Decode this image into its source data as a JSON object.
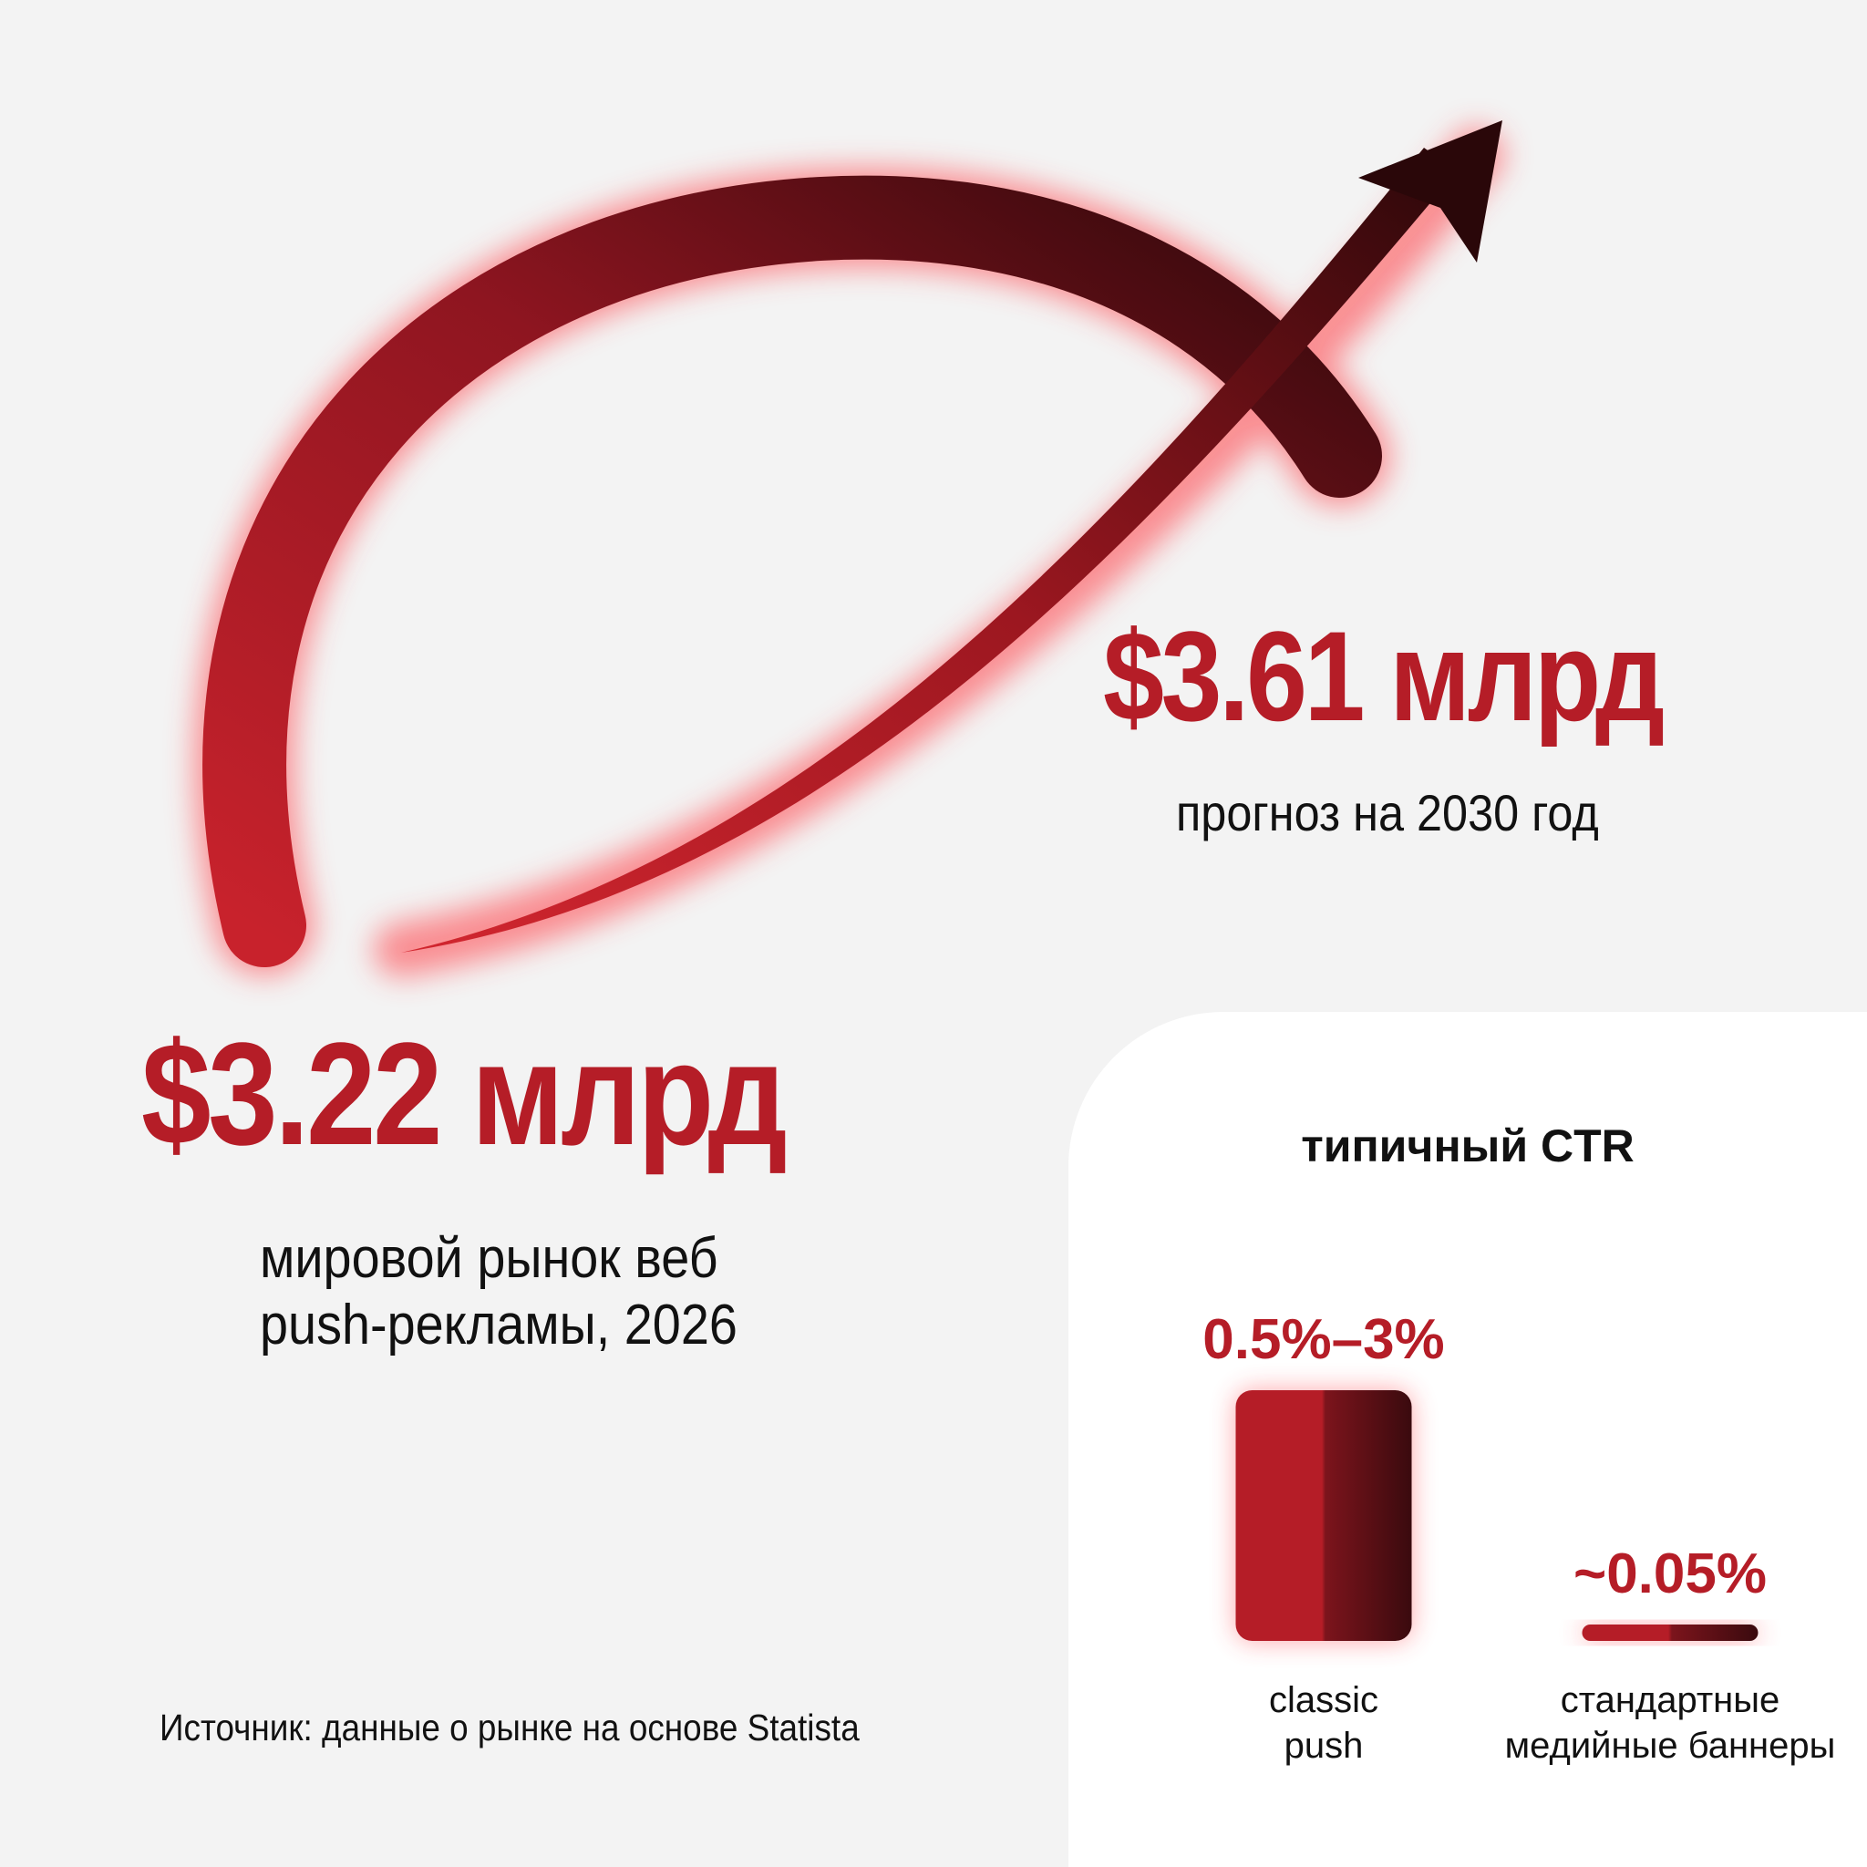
{
  "stats": {
    "forecast": {
      "value": "$3.61 млрд",
      "caption": "прогноз на 2030 год"
    },
    "market": {
      "value": "$3.22 млрд",
      "caption_line1": "мировой рынок веб",
      "caption_line2": "push-рекламы, 2026"
    }
  },
  "source": "Источник: данные о рынке на основе Statista",
  "colors": {
    "accent": "#b51d27",
    "dark": "#3a0a0e",
    "text": "#111111",
    "background": "#f3f3f3",
    "panel": "#ffffff"
  },
  "icons": {
    "growth": "curved-arrow-up-right-icon"
  },
  "chart_data": {
    "type": "bar",
    "title": "типичный CTR",
    "categories": [
      "classic push",
      "стандартные медийные баннеры"
    ],
    "category_lines": [
      [
        "classic",
        "push"
      ],
      [
        "стандартные",
        "медийные баннеры"
      ]
    ],
    "values": [
      3,
      0.05
    ],
    "value_labels": [
      "0.5%–3%",
      "~0.05%"
    ],
    "ylim": [
      0,
      3
    ],
    "grid": false,
    "legend": "none"
  }
}
